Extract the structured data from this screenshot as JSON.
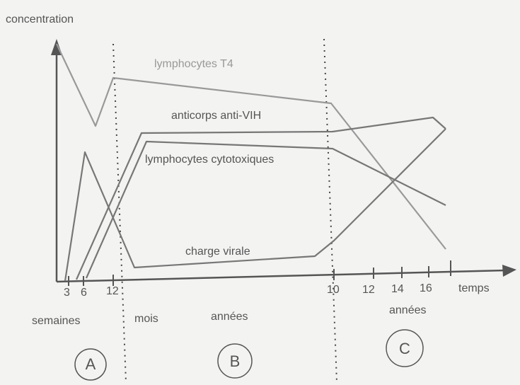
{
  "labels": {
    "y_axis": "concentration",
    "x_axis": "temps"
  },
  "curves": [
    "lymphocytes T4",
    "anticorps anti-VIH",
    "lymphocytes cytotoxiques",
    "charge virale"
  ],
  "x_ticks": [
    "3",
    "6",
    "12",
    "10",
    "12",
    "14",
    "16"
  ],
  "periods": [
    "semaines",
    "mois",
    "années",
    "années"
  ],
  "phases": [
    "A",
    "B",
    "C"
  ]
}
